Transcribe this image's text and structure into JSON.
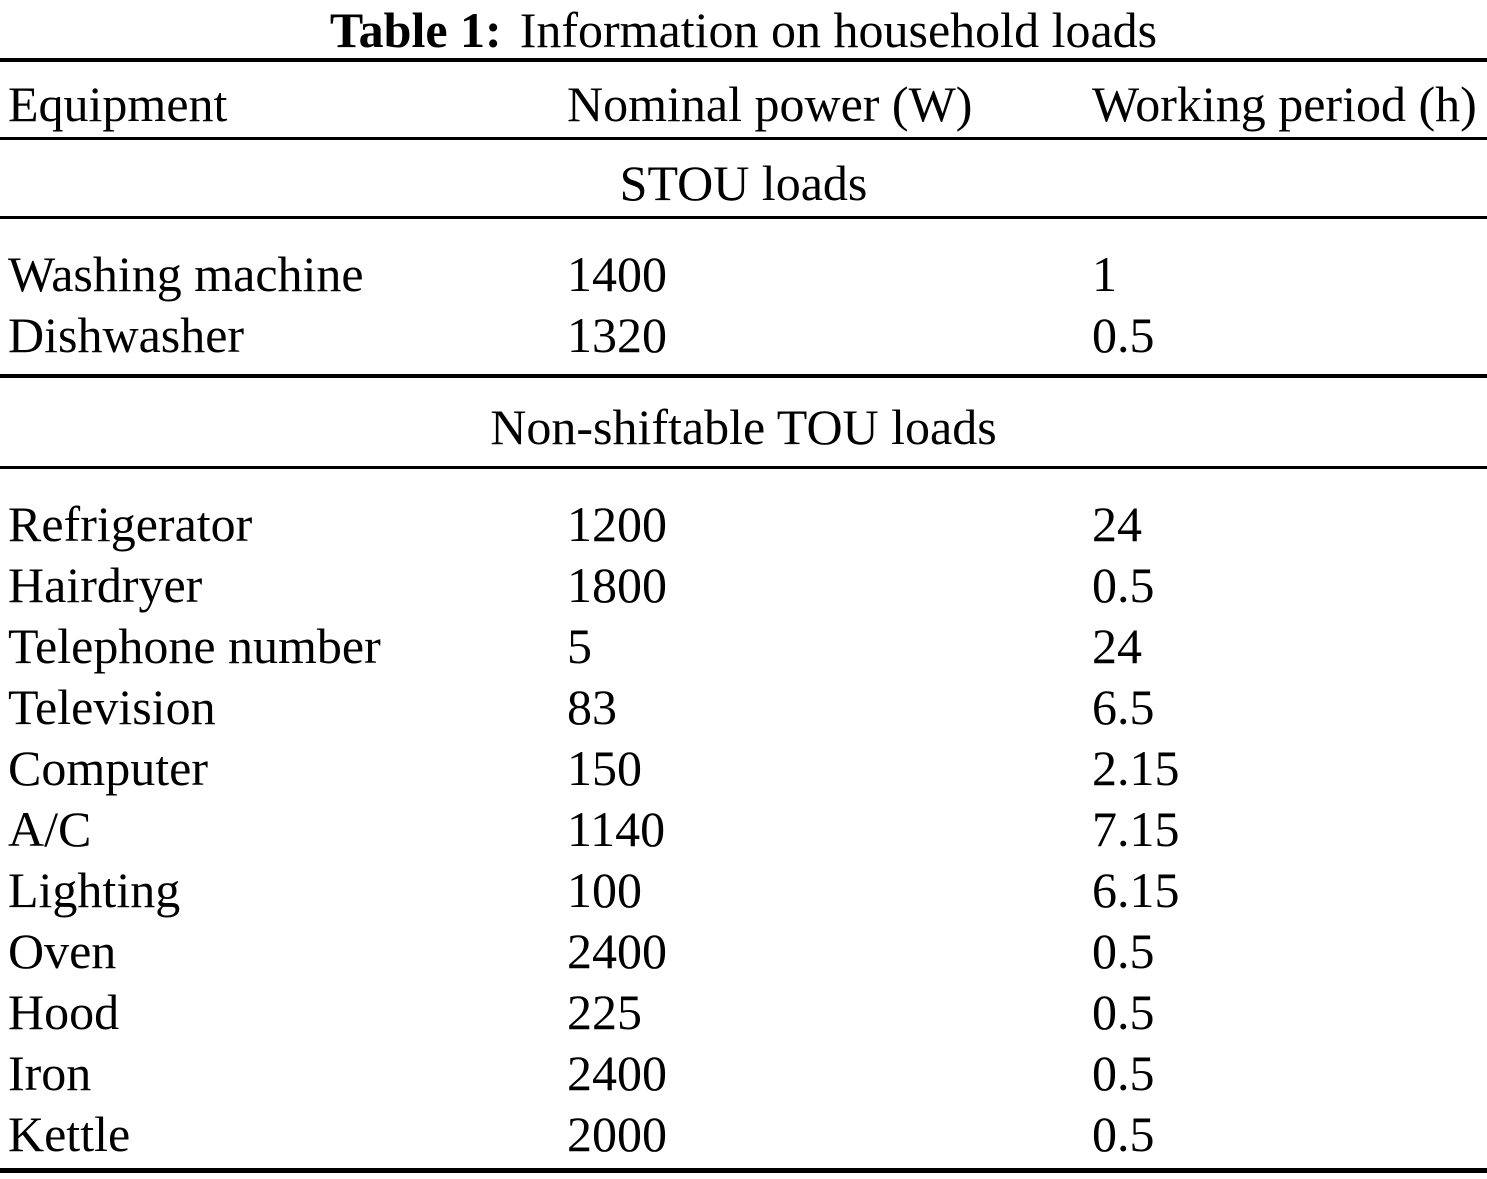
{
  "title": {
    "prefix": "Table 1:",
    "text": "Information on household loads"
  },
  "columns": [
    "Equipment",
    "Nominal power (W)",
    "Working period (h)"
  ],
  "sections": [
    {
      "header": "STOU loads",
      "rows": [
        {
          "equipment": "Washing machine",
          "power": "1400",
          "period": "1"
        },
        {
          "equipment": "Dishwasher",
          "power": "1320",
          "period": "0.5"
        }
      ]
    },
    {
      "header": "Non-shiftable TOU loads",
      "rows": [
        {
          "equipment": "Refrigerator",
          "power": "1200",
          "period": "24"
        },
        {
          "equipment": "Hairdryer",
          "power": "1800",
          "period": "0.5"
        },
        {
          "equipment": "Telephone number",
          "power": "5",
          "period": "24"
        },
        {
          "equipment": "Television",
          "power": "83",
          "period": "6.5"
        },
        {
          "equipment": "Computer",
          "power": "150",
          "period": "2.15"
        },
        {
          "equipment": "A/C",
          "power": "1140",
          "period": "7.15"
        },
        {
          "equipment": "Lighting",
          "power": "100",
          "period": "6.15"
        },
        {
          "equipment": "Oven",
          "power": "2400",
          "period": "0.5"
        },
        {
          "equipment": "Hood",
          "power": "225",
          "period": "0.5"
        },
        {
          "equipment": "Iron",
          "power": "2400",
          "period": "0.5"
        },
        {
          "equipment": "Kettle",
          "power": "2000",
          "period": "0.5"
        }
      ]
    }
  ],
  "colors": {
    "text": "#000000",
    "background": "#ffffff",
    "rule": "#000000"
  }
}
